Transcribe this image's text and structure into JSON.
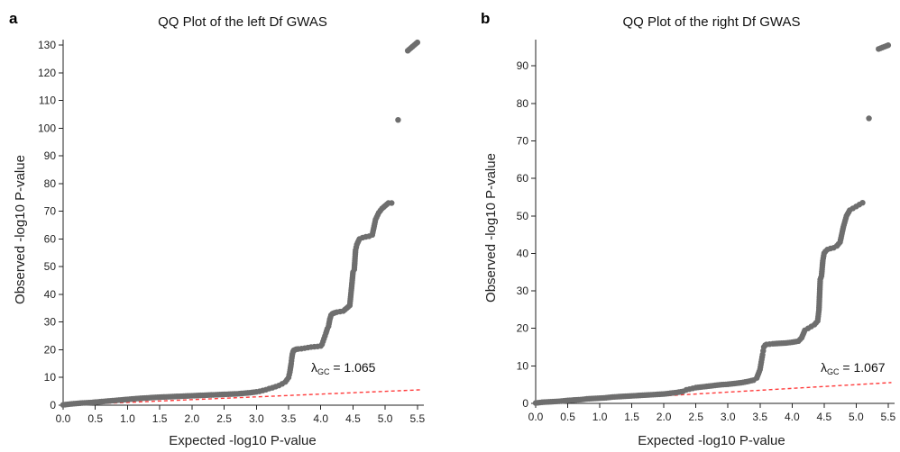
{
  "chart_data": [
    {
      "panel_letter": "a",
      "type": "scatter",
      "title": "QQ Plot of the left Df GWAS",
      "xlabel": "Expected -log10 P-value",
      "ylabel": "Observed -log10 P-value",
      "xlim": [
        0,
        5.6
      ],
      "ylim": [
        0,
        132
      ],
      "xticks": [
        "0.0",
        "0.5",
        "1.0",
        "1.5",
        "2.0",
        "2.5",
        "3.0",
        "3.5",
        "4.0",
        "4.5",
        "5.0",
        "5.5"
      ],
      "yticks": [
        "0",
        "10",
        "20",
        "30",
        "40",
        "50",
        "60",
        "70",
        "80",
        "90",
        "100",
        "110",
        "120",
        "130"
      ],
      "annotation": {
        "symbol": "λ",
        "subscript": "GC",
        "text": " = 1.065",
        "x": 4.35,
        "y": 12
      },
      "reference_line": {
        "color": "#ff3b3b",
        "style": "dashed",
        "from": [
          0,
          0
        ],
        "to": [
          5.55,
          5.55
        ]
      },
      "point_color": "#6e6e6e",
      "series": [
        {
          "x": [
            0.0,
            0.1,
            0.2,
            0.3,
            0.4,
            0.5,
            0.6,
            0.7,
            0.8,
            0.9,
            1.0,
            1.1,
            1.2,
            1.3,
            1.4,
            1.5,
            1.6,
            1.7,
            1.8,
            1.9,
            2.0,
            2.1,
            2.2,
            2.3,
            2.4,
            2.5,
            2.6,
            2.7,
            2.8,
            2.9,
            3.0,
            3.05,
            3.1,
            3.15,
            3.2,
            3.25,
            3.3,
            3.35,
            3.4,
            3.45,
            3.5,
            3.52,
            3.54,
            3.55,
            3.56,
            3.57,
            3.58,
            3.6,
            3.62,
            3.65,
            3.7,
            3.75,
            3.8,
            3.85,
            3.9,
            3.95,
            4.0,
            4.02,
            4.05,
            4.08,
            4.1,
            4.12,
            4.14,
            4.16,
            4.18,
            4.2,
            4.22,
            4.25,
            4.3,
            4.35,
            4.4,
            4.45,
            4.48,
            4.5,
            4.52,
            4.54,
            4.56,
            4.6,
            4.65,
            4.7,
            4.75,
            4.8,
            4.85,
            4.9,
            4.95,
            5.0,
            5.05,
            5.1,
            5.2,
            5.35,
            5.5
          ],
          "y": [
            0.1,
            0.4,
            0.6,
            0.8,
            0.9,
            1.1,
            1.3,
            1.5,
            1.7,
            1.9,
            2.1,
            2.3,
            2.5,
            2.6,
            2.8,
            2.9,
            3.0,
            3.1,
            3.2,
            3.3,
            3.4,
            3.5,
            3.6,
            3.7,
            3.8,
            3.9,
            4.0,
            4.1,
            4.3,
            4.5,
            4.8,
            5.0,
            5.3,
            5.6,
            6.0,
            6.3,
            6.7,
            7.1,
            7.7,
            8.4,
            10.0,
            12.0,
            15.0,
            17.0,
            18.5,
            19.3,
            19.8,
            20.0,
            20.2,
            20.3,
            20.4,
            20.6,
            20.8,
            21.0,
            21.1,
            21.2,
            21.4,
            22.0,
            24.0,
            26.0,
            27.5,
            28.5,
            31.0,
            32.5,
            33.0,
            33.2,
            33.4,
            33.6,
            33.8,
            34.0,
            35.0,
            36.0,
            43.0,
            48.0,
            49.0,
            56.0,
            58.0,
            60.0,
            60.5,
            60.8,
            61.0,
            61.5,
            67.0,
            69.5,
            71.0,
            72.0,
            73.0,
            73.0,
            103.0,
            128.0,
            131.0
          ]
        }
      ]
    },
    {
      "panel_letter": "b",
      "type": "scatter",
      "title": "QQ Plot of the right Df GWAS",
      "xlabel": "Expected -log10 P-value",
      "ylabel": "Observed -log10 P-value",
      "xlim": [
        0,
        5.6
      ],
      "ylim": [
        0,
        97
      ],
      "xticks": [
        "0.0",
        "0.5",
        "1.0",
        "1.5",
        "2.0",
        "2.5",
        "3.0",
        "3.5",
        "4.0",
        "4.5",
        "5.0",
        "5.5"
      ],
      "yticks": [
        "0",
        "10",
        "20",
        "30",
        "40",
        "50",
        "60",
        "70",
        "80",
        "90"
      ],
      "annotation": {
        "symbol": "λ",
        "subscript": "GC",
        "text": " = 1.067",
        "x": 4.95,
        "y": 8.4
      },
      "reference_line": {
        "color": "#ff3b3b",
        "style": "dashed",
        "from": [
          0,
          0
        ],
        "to": [
          5.55,
          5.55
        ]
      },
      "point_color": "#6e6e6e",
      "series": [
        {
          "x": [
            0.0,
            0.1,
            0.2,
            0.3,
            0.4,
            0.5,
            0.6,
            0.7,
            0.8,
            0.9,
            1.0,
            1.1,
            1.2,
            1.3,
            1.4,
            1.5,
            1.6,
            1.7,
            1.8,
            1.9,
            2.0,
            2.1,
            2.2,
            2.3,
            2.35,
            2.4,
            2.45,
            2.5,
            2.6,
            2.7,
            2.8,
            2.9,
            3.0,
            3.1,
            3.2,
            3.3,
            3.4,
            3.45,
            3.5,
            3.52,
            3.54,
            3.55,
            3.56,
            3.58,
            3.6,
            3.65,
            3.7,
            3.8,
            3.9,
            4.0,
            4.1,
            4.15,
            4.2,
            4.25,
            4.3,
            4.35,
            4.4,
            4.42,
            4.44,
            4.46,
            4.48,
            4.5,
            4.52,
            4.55,
            4.6,
            4.65,
            4.7,
            4.75,
            4.8,
            4.85,
            4.9,
            4.95,
            5.0,
            5.05,
            5.1,
            5.2,
            5.35,
            5.5
          ],
          "y": [
            0.1,
            0.3,
            0.4,
            0.5,
            0.6,
            0.8,
            0.9,
            1.0,
            1.2,
            1.3,
            1.4,
            1.5,
            1.7,
            1.8,
            1.9,
            2.0,
            2.1,
            2.2,
            2.3,
            2.4,
            2.5,
            2.7,
            2.9,
            3.2,
            3.6,
            3.8,
            4.0,
            4.2,
            4.4,
            4.6,
            4.8,
            5.0,
            5.1,
            5.3,
            5.5,
            5.8,
            6.2,
            6.8,
            9.0,
            11.0,
            13.0,
            14.0,
            15.0,
            15.5,
            15.7,
            15.8,
            15.9,
            16.0,
            16.1,
            16.3,
            16.6,
            17.5,
            19.5,
            20.0,
            20.5,
            21.0,
            22.0,
            25.0,
            33.0,
            34.0,
            38.0,
            40.0,
            40.5,
            41.0,
            41.3,
            41.5,
            42.0,
            43.0,
            47.0,
            50.0,
            51.5,
            52.0,
            52.5,
            53.0,
            53.5,
            76.0,
            94.5,
            95.5
          ]
        }
      ]
    }
  ]
}
